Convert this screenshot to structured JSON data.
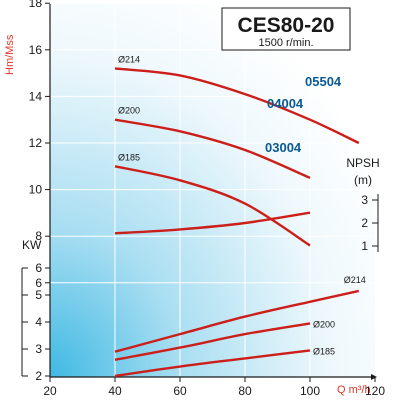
{
  "chart_data": {
    "type": "line",
    "title": "CES80-20",
    "subtitle": "1500 r/min.",
    "xlabel": "Q m³/h",
    "x_ticks": [
      "20",
      "40",
      "60",
      "80",
      "100",
      "120"
    ],
    "head_axis": {
      "label": "Hm/Mss",
      "ticks": [
        "2",
        "4",
        "6",
        "8",
        "10",
        "12",
        "14",
        "16",
        "18"
      ],
      "ylim": [
        2,
        18
      ]
    },
    "npsh_axis": {
      "label": "NPSH\n(m)",
      "ticks": [
        "1",
        "2",
        "3"
      ],
      "ylim": [
        1,
        3
      ]
    },
    "power_axis": {
      "label": "KW",
      "ticks": [
        "2",
        "3",
        "4",
        "5",
        "6"
      ],
      "ylim": [
        2,
        6
      ]
    },
    "head_curves": [
      {
        "diameter_label": "Ø214",
        "model_label": "05504",
        "points": [
          [
            40,
            15.2
          ],
          [
            60,
            14.9
          ],
          [
            80,
            14.1
          ],
          [
            100,
            13.0
          ],
          [
            115,
            12.0
          ]
        ]
      },
      {
        "diameter_label": "Ø200",
        "model_label": "04004",
        "points": [
          [
            40,
            13.0
          ],
          [
            60,
            12.5
          ],
          [
            80,
            11.7
          ],
          [
            100,
            10.5
          ]
        ]
      },
      {
        "diameter_label": "Ø185",
        "model_label": "03004",
        "points": [
          [
            40,
            11.0
          ],
          [
            60,
            10.4
          ],
          [
            80,
            9.4
          ],
          [
            100,
            7.6
          ]
        ]
      }
    ],
    "npsh_curve": {
      "points": [
        [
          40,
          1.55
        ],
        [
          60,
          1.72
        ],
        [
          80,
          2.0
        ],
        [
          100,
          2.45
        ]
      ]
    },
    "power_curves": [
      {
        "diameter_label": "Ø214",
        "points": [
          [
            40,
            2.9
          ],
          [
            60,
            3.55
          ],
          [
            80,
            4.2
          ],
          [
            100,
            4.75
          ],
          [
            115,
            5.15
          ]
        ]
      },
      {
        "diameter_label": "Ø200",
        "points": [
          [
            40,
            2.6
          ],
          [
            60,
            3.05
          ],
          [
            80,
            3.55
          ],
          [
            100,
            3.95
          ]
        ]
      },
      {
        "diameter_label": "Ø185",
        "points": [
          [
            40,
            2.0
          ],
          [
            60,
            2.35
          ],
          [
            80,
            2.65
          ],
          [
            100,
            2.95
          ]
        ]
      }
    ],
    "colors": {
      "curve": "#cc1f1a",
      "axis_label": "#e8332a",
      "model_label": "#0a5a95",
      "axis": "#1a1a1a"
    }
  }
}
